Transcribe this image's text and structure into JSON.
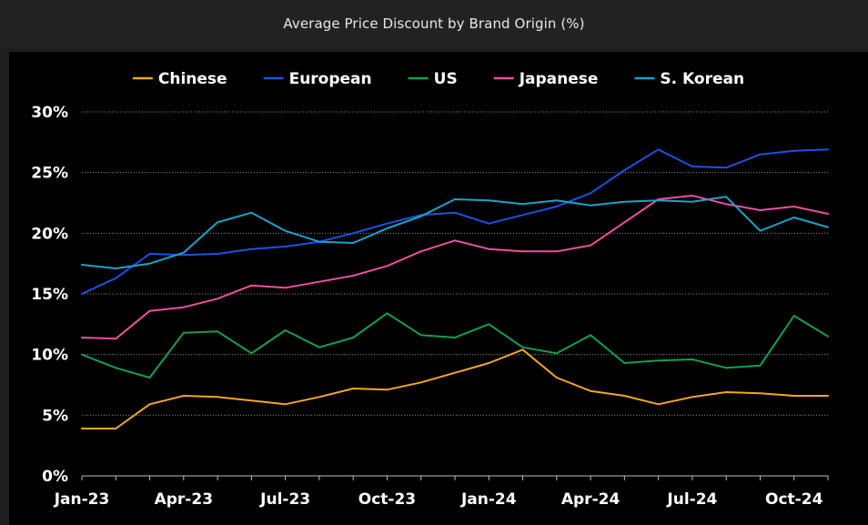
{
  "title": "Average Price Discount by Brand Origin (%)",
  "chart_data": {
    "type": "line",
    "title": "Average Price Discount by Brand Origin (%)",
    "x": [
      "2023-01",
      "2023-02",
      "2023-03",
      "2023-04",
      "2023-05",
      "2023-06",
      "2023-07",
      "2023-08",
      "2023-09",
      "2023-10",
      "2023-11",
      "2023-12",
      "2024-01",
      "2024-02",
      "2024-03",
      "2024-04",
      "2024-05",
      "2024-06",
      "2024-07",
      "2024-08",
      "2024-09",
      "2024-10",
      "2024-11"
    ],
    "x_tick_labels": [
      {
        "label": "Jan-23",
        "x": "2023-01"
      },
      {
        "label": "Apr-23",
        "x": "2023-04"
      },
      {
        "label": "Jul-23",
        "x": "2023-07"
      },
      {
        "label": "Oct-23",
        "x": "2023-10"
      },
      {
        "label": "Jan-24",
        "x": "2024-01"
      },
      {
        "label": "Apr-24",
        "x": "2024-04"
      },
      {
        "label": "Jul-24",
        "x": "2024-07"
      },
      {
        "label": "Oct-24",
        "x": "2024-10"
      }
    ],
    "y_ticks": [
      {
        "value": 0,
        "label": "0%"
      },
      {
        "value": 5,
        "label": "5%"
      },
      {
        "value": 10,
        "label": "10%"
      },
      {
        "value": 15,
        "label": "15%"
      },
      {
        "value": 20,
        "label": "20%"
      },
      {
        "value": 25,
        "label": "25%"
      },
      {
        "value": 30,
        "label": "30%"
      }
    ],
    "ylim": [
      0,
      30
    ],
    "grid": "horizontal",
    "legend_position": "top",
    "series": [
      {
        "name": "Chinese",
        "color": "#f5a623",
        "values": [
          3.9,
          3.9,
          5.9,
          6.6,
          6.5,
          6.2,
          5.9,
          6.5,
          7.2,
          7.1,
          7.7,
          8.5,
          9.3,
          10.4,
          8.1,
          7.0,
          6.6,
          5.9,
          6.5,
          6.9,
          6.8,
          6.6,
          6.6
        ]
      },
      {
        "name": "European",
        "color": "#1e50e6",
        "values": [
          15.0,
          16.3,
          18.3,
          18.2,
          18.3,
          18.7,
          18.9,
          19.3,
          20.0,
          20.8,
          21.5,
          21.7,
          20.8,
          21.5,
          22.2,
          23.3,
          25.2,
          26.9,
          25.5,
          25.4,
          26.5,
          26.8,
          26.9
        ]
      },
      {
        "name": "US",
        "color": "#13a050",
        "values": [
          10.0,
          8.9,
          8.1,
          11.8,
          11.9,
          10.1,
          12.0,
          10.6,
          11.4,
          13.4,
          11.6,
          11.4,
          12.5,
          10.6,
          10.1,
          11.6,
          9.3,
          9.5,
          9.6,
          8.9,
          9.1,
          13.2,
          11.5
        ]
      },
      {
        "name": "Japanese",
        "color": "#ee4fa0",
        "values": [
          11.4,
          11.3,
          13.6,
          13.9,
          14.6,
          15.7,
          15.5,
          16.0,
          16.5,
          17.3,
          18.5,
          19.4,
          18.7,
          18.5,
          18.5,
          19.0,
          20.9,
          22.8,
          23.1,
          22.4,
          21.9,
          22.2,
          21.6
        ]
      },
      {
        "name": "S. Korean",
        "color": "#1aa3c8",
        "values": [
          17.4,
          17.1,
          17.5,
          18.4,
          20.9,
          21.7,
          20.2,
          19.3,
          19.2,
          20.4,
          21.4,
          22.8,
          22.7,
          22.4,
          22.7,
          22.3,
          22.6,
          22.7,
          22.6,
          23.0,
          20.2,
          21.3,
          20.5
        ]
      }
    ]
  }
}
